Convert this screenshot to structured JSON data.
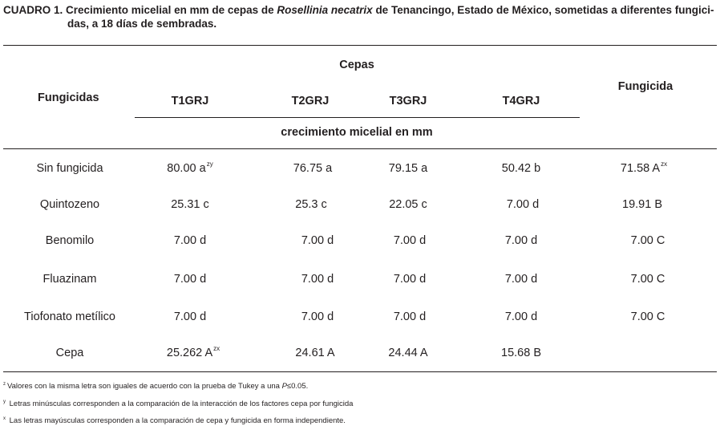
{
  "caption": {
    "label": "CUADRO 1.",
    "text_a": " Crecimiento micelial en mm de cepas de ",
    "species": "Rosellinia necatrix",
    "text_b": " de Tenancingo, Estado de México, sometidas a diferentes fungici-",
    "line2": "das, a 18 días de sembradas."
  },
  "header": {
    "fungicidas": "Fungicidas",
    "cepas": "Cepas",
    "fungicida": "Fungicida",
    "strains": [
      "T1GRJ",
      "T2GRJ",
      "T3GRJ",
      "T4GRJ"
    ],
    "units": "crecimiento micelial en mm"
  },
  "rows": [
    {
      "name": "Sin fungicida",
      "v1": "80.00 a",
      "v1_sup": "zy",
      "v2": "76.75 a",
      "v3": "79.15 a",
      "v4": "50.42 b",
      "f": "71.58 A",
      "f_sup": "zx"
    },
    {
      "name": "Quintozeno",
      "v1": "25.31 c",
      "v2": "25.3 c",
      "v3": "22.05 c",
      "v4": "7.00 d",
      "f": "19.91 B"
    },
    {
      "name": "Benomilo",
      "v1": "7.00 d",
      "v2": "7.00 d",
      "v3": "7.00 d",
      "v4": "7.00 d",
      "f": "7.00 C"
    },
    {
      "name": "Fluazinam",
      "v1": "7.00 d",
      "v2": "7.00 d",
      "v3": "7.00 d",
      "v4": "7.00 d",
      "f": "7.00 C"
    },
    {
      "name": "Tiofonato metílico",
      "v1": "7.00 d",
      "v2": "7.00 d",
      "v3": "7.00 d",
      "v4": "7.00 d",
      "f": "7.00 C"
    },
    {
      "name": "Cepa",
      "v1": "25.262 A",
      "v1_sup": "zx",
      "v2": "24.61 A",
      "v3": "24.44 A",
      "v4": "15.68 B",
      "f": ""
    }
  ],
  "footnotes": [
    {
      "mark": "z",
      "text_a": "Valores con la misma letra son iguales de acuerdo con la prueba de Tukey a una ",
      "p": "P",
      "text_b": "≤0.05."
    },
    {
      "mark": "y",
      "text_a": "Letras minúsculas corresponden a la comparación de la interacción de los factores cepa por fungicida"
    },
    {
      "mark": "x",
      "text_a": "Las letras mayúsculas corresponden a la comparación de cepa y fungicida en forma independiente."
    }
  ]
}
